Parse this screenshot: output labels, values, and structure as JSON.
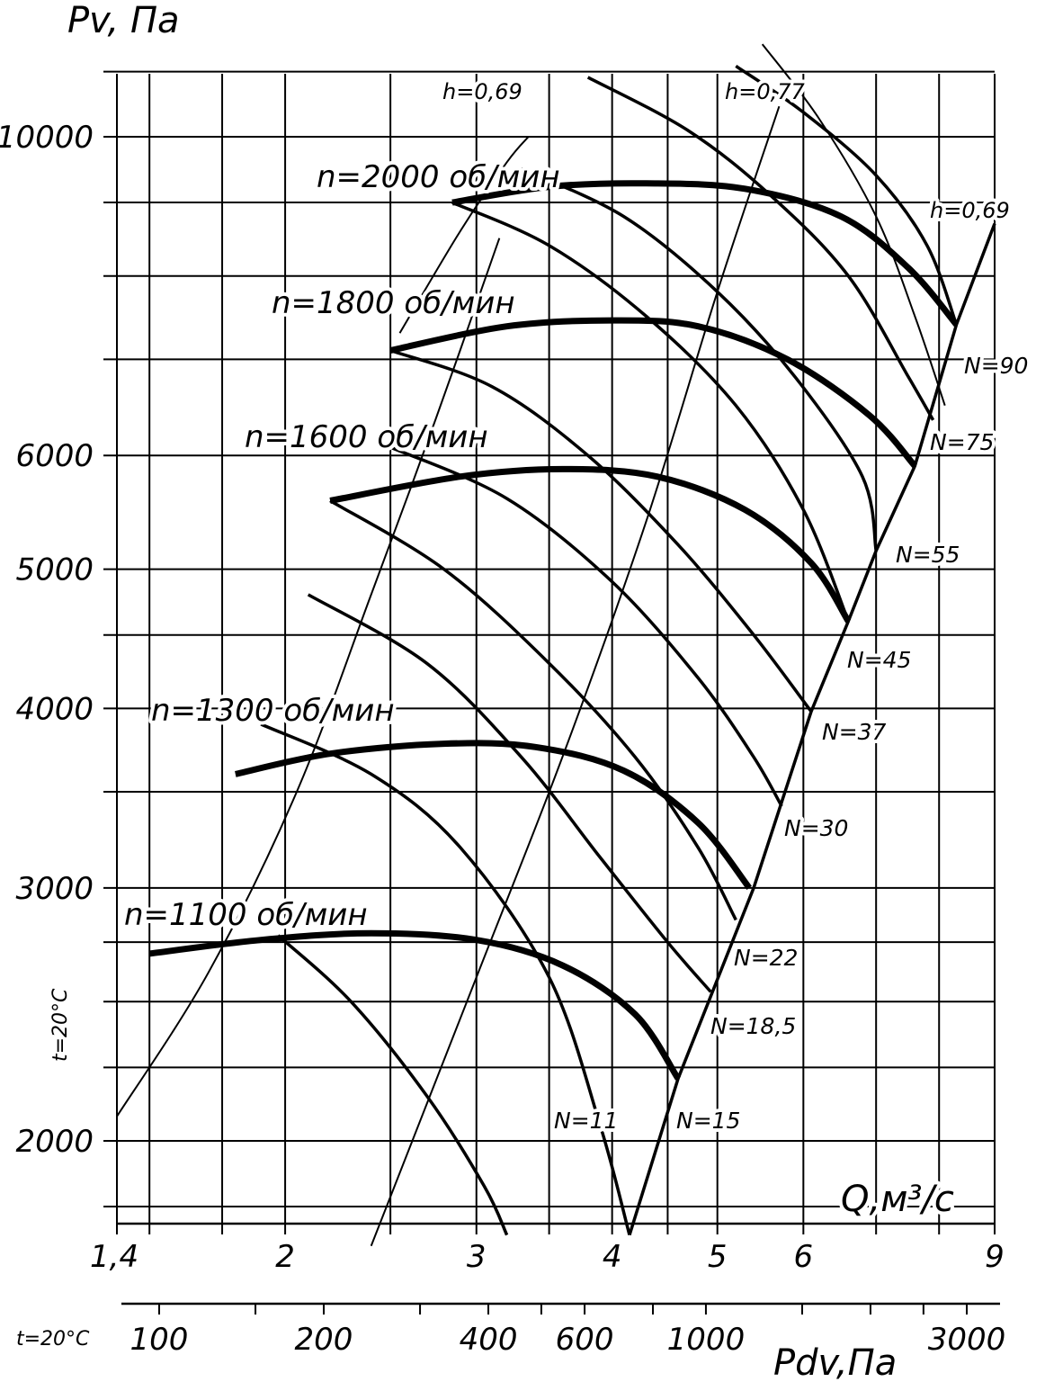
{
  "chart_data": {
    "type": "line",
    "title": "",
    "y_axis": {
      "label": "Pv, Па",
      "scale": "log",
      "ticks": [
        10000,
        6000,
        5000,
        4000,
        3000,
        2000
      ],
      "range": [
        1680,
        11500
      ]
    },
    "x_axis": {
      "label": "Q,м³/с",
      "scale": "log",
      "ticks": [
        "1,4",
        "2",
        "3",
        "4",
        "5",
        "6",
        "9"
      ],
      "range": [
        1.4,
        9
      ]
    },
    "x_axis_secondary": {
      "label": "Pdv,Па",
      "prefix_label": "t=20°C",
      "scale": "log",
      "ticks": [
        "100",
        "200",
        "400",
        "600",
        "1000",
        "3000"
      ]
    },
    "side_label": "t=20°C",
    "grid": true,
    "speed_curves": [
      {
        "name": "n=2000 об/мин",
        "points": [
          [
            2.85,
            9000
          ],
          [
            3.5,
            9230
          ],
          [
            4.3,
            9280
          ],
          [
            5.3,
            9200
          ],
          [
            6.5,
            8800
          ],
          [
            7.5,
            8100
          ],
          [
            8.3,
            7400
          ]
        ]
      },
      {
        "name": "n=1800 об/мин",
        "points": [
          [
            2.5,
            7100
          ],
          [
            3.2,
            7380
          ],
          [
            4.0,
            7450
          ],
          [
            4.8,
            7380
          ],
          [
            5.8,
            7000
          ],
          [
            6.9,
            6400
          ],
          [
            7.6,
            5900
          ]
        ]
      },
      {
        "name": "n=1600 об/мин",
        "points": [
          [
            2.2,
            5580
          ],
          [
            2.9,
            5800
          ],
          [
            3.6,
            5870
          ],
          [
            4.4,
            5800
          ],
          [
            5.3,
            5500
          ],
          [
            6.1,
            5050
          ],
          [
            6.6,
            4600
          ]
        ]
      },
      {
        "name": "n=1300 об/мин",
        "points": [
          [
            1.8,
            3600
          ],
          [
            2.2,
            3720
          ],
          [
            2.8,
            3780
          ],
          [
            3.4,
            3760
          ],
          [
            4.1,
            3620
          ],
          [
            4.8,
            3330
          ],
          [
            5.35,
            3000
          ]
        ]
      },
      {
        "name": "n=1100 об/мин",
        "points": [
          [
            1.5,
            2700
          ],
          [
            1.9,
            2760
          ],
          [
            2.4,
            2790
          ],
          [
            3.0,
            2760
          ],
          [
            3.6,
            2650
          ],
          [
            4.2,
            2450
          ],
          [
            4.6,
            2210
          ]
        ]
      }
    ],
    "power_curves": [
      {
        "name": "N=11",
        "points": [
          [
            1.97,
            2780
          ],
          [
            2.3,
            2500
          ],
          [
            2.7,
            2150
          ],
          [
            3.05,
            1860
          ],
          [
            3.2,
            1720
          ]
        ]
      },
      {
        "name": "N=15",
        "points": [
          [
            1.9,
            3900
          ],
          [
            2.4,
            3600
          ],
          [
            2.9,
            3200
          ],
          [
            3.5,
            2600
          ],
          [
            3.9,
            2050
          ],
          [
            4.15,
            1720
          ]
        ]
      },
      {
        "name": "N=18,5",
        "points": [
          [
            2.1,
            4800
          ],
          [
            2.7,
            4300
          ],
          [
            3.3,
            3700
          ],
          [
            3.9,
            3150
          ],
          [
            4.5,
            2750
          ],
          [
            4.93,
            2540
          ]
        ]
      },
      {
        "name": "N=22",
        "points": [
          [
            2.2,
            5580
          ],
          [
            2.8,
            5000
          ],
          [
            3.5,
            4300
          ],
          [
            4.2,
            3700
          ],
          [
            4.8,
            3200
          ],
          [
            5.2,
            2850
          ]
        ]
      },
      {
        "name": "N=30",
        "points": [
          [
            2.5,
            6080
          ],
          [
            3.2,
            5600
          ],
          [
            4.0,
            4900
          ],
          [
            4.8,
            4200
          ],
          [
            5.4,
            3700
          ],
          [
            5.73,
            3420
          ]
        ]
      },
      {
        "name": "N=37",
        "points": [
          [
            2.5,
            7100
          ],
          [
            3.1,
            6700
          ],
          [
            3.8,
            6000
          ],
          [
            4.6,
            5200
          ],
          [
            5.4,
            4500
          ],
          [
            6.1,
            3980
          ]
        ]
      },
      {
        "name": "N=45",
        "points": [
          [
            2.85,
            9000
          ],
          [
            3.5,
            8400
          ],
          [
            4.3,
            7500
          ],
          [
            5.2,
            6500
          ],
          [
            6.0,
            5500
          ],
          [
            6.6,
            4600
          ]
        ]
      },
      {
        "name": "N=55",
        "points": [
          [
            3.3,
            9500
          ],
          [
            4.1,
            8800
          ],
          [
            5.0,
            7800
          ],
          [
            5.9,
            6800
          ],
          [
            6.8,
            5800
          ],
          [
            7.0,
            5150
          ]
        ]
      },
      {
        "name": "N=75",
        "points": [
          [
            3.8,
            11000
          ],
          [
            4.7,
            10100
          ],
          [
            5.6,
            9100
          ],
          [
            6.6,
            8000
          ],
          [
            7.5,
            6800
          ],
          [
            7.9,
            6350
          ]
        ]
      },
      {
        "name": "N=90",
        "points": [
          [
            5.2,
            11200
          ],
          [
            6.0,
            10400
          ],
          [
            7.0,
            9400
          ],
          [
            7.8,
            8400
          ],
          [
            8.3,
            7400
          ]
        ]
      }
    ],
    "efficiency_curves": [
      {
        "name": "h=0,69",
        "points": [
          [
            2.55,
            7300
          ],
          [
            2.9,
            8600
          ],
          [
            3.2,
            9600
          ],
          [
            3.35,
            10000
          ]
        ]
      },
      {
        "name": "h=0,77",
        "points": [
          [
            2.4,
            1690
          ],
          [
            3.0,
            2600
          ],
          [
            3.6,
            3700
          ],
          [
            4.3,
            5400
          ],
          [
            5.0,
            7800
          ],
          [
            5.7,
            10500
          ]
        ]
      },
      {
        "name": "h=0,69",
        "points": [
          [
            1.4,
            2080
          ],
          [
            1.7,
            2620
          ],
          [
            2.05,
            3500
          ],
          [
            2.4,
            4800
          ],
          [
            2.75,
            6350
          ],
          [
            3.15,
            8500
          ]
        ]
      },
      {
        "name": "h=0,69",
        "points": [
          [
            5.5,
            11600
          ],
          [
            6.2,
            10300
          ],
          [
            7.0,
            8800
          ],
          [
            7.6,
            7500
          ],
          [
            8.1,
            6500
          ]
        ]
      }
    ],
    "power_boundary": [
      [
        4.15,
        1720
      ],
      [
        4.6,
        2210
      ],
      [
        5.4,
        3000
      ],
      [
        6.1,
        3980
      ],
      [
        6.6,
        4600
      ],
      [
        7.0,
        5150
      ],
      [
        7.6,
        5900
      ],
      [
        8.3,
        7400
      ],
      [
        9.0,
        8700
      ]
    ]
  }
}
